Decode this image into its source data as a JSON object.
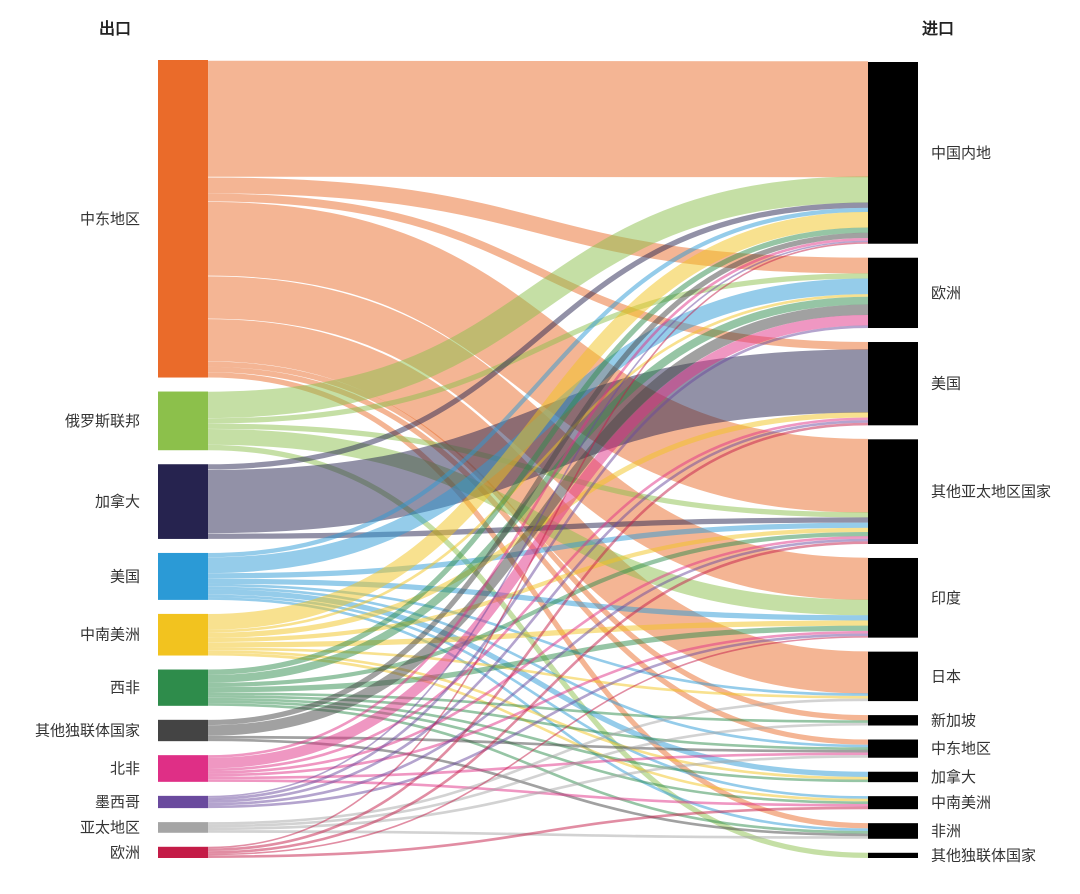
{
  "chart_data": {
    "type": "sankey",
    "source_header": "出口",
    "target_header": "进口",
    "sources": [
      {
        "name": "中东地区",
        "color": "#ea6b2a"
      },
      {
        "name": "俄罗斯联邦",
        "color": "#8cc04b"
      },
      {
        "name": "加拿大",
        "color": "#26234f"
      },
      {
        "name": "美国",
        "color": "#2b9ad6"
      },
      {
        "name": "中南美洲",
        "color": "#f2c31f"
      },
      {
        "name": "西非",
        "color": "#2e8c4b"
      },
      {
        "name": "其他独联体国家",
        "color": "#444444"
      },
      {
        "name": "北非",
        "color": "#df2f86"
      },
      {
        "name": "墨西哥",
        "color": "#6a4a9e"
      },
      {
        "name": "亚太地区",
        "color": "#a5a5a5"
      },
      {
        "name": "欧洲",
        "color": "#c41c47"
      }
    ],
    "targets": [
      {
        "name": "中国内地",
        "color": "#000000"
      },
      {
        "name": "欧洲",
        "color": "#000000"
      },
      {
        "name": "美国",
        "color": "#000000"
      },
      {
        "name": "其他亚太地区国家",
        "color": "#000000"
      },
      {
        "name": "印度",
        "color": "#000000"
      },
      {
        "name": "日本",
        "color": "#000000"
      },
      {
        "name": "新加坡",
        "color": "#000000"
      },
      {
        "name": "中东地区",
        "color": "#000000"
      },
      {
        "name": "加拿大",
        "color": "#000000"
      },
      {
        "name": "中南美洲",
        "color": "#000000"
      },
      {
        "name": "非洲",
        "color": "#000000"
      },
      {
        "name": "其他独联体国家",
        "color": "#000000"
      }
    ],
    "links": [
      {
        "source": "中东地区",
        "target": "中国内地",
        "value": 22
      },
      {
        "source": "中东地区",
        "target": "欧洲",
        "value": 3
      },
      {
        "source": "中东地区",
        "target": "美国",
        "value": 1.5
      },
      {
        "source": "中东地区",
        "target": "其他亚太地区国家",
        "value": 14
      },
      {
        "source": "中东地区",
        "target": "印度",
        "value": 8
      },
      {
        "source": "中东地区",
        "target": "日本",
        "value": 8
      },
      {
        "source": "中东地区",
        "target": "新加坡",
        "value": 1
      },
      {
        "source": "中东地区",
        "target": "中东地区",
        "value": 1
      },
      {
        "source": "中东地区",
        "target": "非洲",
        "value": 1
      },
      {
        "source": "俄罗斯联邦",
        "target": "中国内地",
        "value": 5
      },
      {
        "source": "俄罗斯联邦",
        "target": "欧洲",
        "value": 1
      },
      {
        "source": "俄罗斯联邦",
        "target": "其他亚太地区国家",
        "value": 1
      },
      {
        "source": "俄罗斯联邦",
        "target": "印度",
        "value": 3
      },
      {
        "source": "俄罗斯联邦",
        "target": "其他独联体国家",
        "value": 1
      },
      {
        "source": "加拿大",
        "target": "中国内地",
        "value": 1
      },
      {
        "source": "加拿大",
        "target": "美国",
        "value": 12
      },
      {
        "source": "加拿大",
        "target": "其他亚太地区国家",
        "value": 1
      },
      {
        "source": "美国",
        "target": "中国内地",
        "value": 0.8
      },
      {
        "source": "美国",
        "target": "欧洲",
        "value": 3
      },
      {
        "source": "美国",
        "target": "其他亚太地区国家",
        "value": 1
      },
      {
        "source": "美国",
        "target": "印度",
        "value": 1
      },
      {
        "source": "美国",
        "target": "日本",
        "value": 0.5
      },
      {
        "source": "美国",
        "target": "中东地区",
        "value": 0.5
      },
      {
        "source": "美国",
        "target": "加拿大",
        "value": 1
      },
      {
        "source": "美国",
        "target": "中南美洲",
        "value": 0.5
      },
      {
        "source": "美国",
        "target": "非洲",
        "value": 0.5
      },
      {
        "source": "中南美洲",
        "target": "中国内地",
        "value": 3
      },
      {
        "source": "中南美洲",
        "target": "欧洲",
        "value": 0.5
      },
      {
        "source": "中南美洲",
        "target": "美国",
        "value": 1
      },
      {
        "source": "中南美洲",
        "target": "其他亚太地区国家",
        "value": 0.8
      },
      {
        "source": "中南美洲",
        "target": "印度",
        "value": 1
      },
      {
        "source": "中南美洲",
        "target": "日本",
        "value": 0.5
      },
      {
        "source": "中南美洲",
        "target": "加拿大",
        "value": 0.5
      },
      {
        "source": "中南美洲",
        "target": "中南美洲",
        "value": 0.5
      },
      {
        "source": "西非",
        "target": "中国内地",
        "value": 1
      },
      {
        "source": "西非",
        "target": "欧洲",
        "value": 1.5
      },
      {
        "source": "西非",
        "target": "其他亚太地区国家",
        "value": 0.8
      },
      {
        "source": "西非",
        "target": "印度",
        "value": 1
      },
      {
        "source": "西非",
        "target": "新加坡",
        "value": 0.5
      },
      {
        "source": "西非",
        "target": "中东地区",
        "value": 0.5
      },
      {
        "source": "西非",
        "target": "加拿大",
        "value": 0.5
      },
      {
        "source": "西非",
        "target": "中南美洲",
        "value": 0.5
      },
      {
        "source": "西非",
        "target": "非洲",
        "value": 0.5
      },
      {
        "source": "其他独联体国家",
        "target": "中国内地",
        "value": 1
      },
      {
        "source": "其他独联体国家",
        "target": "欧洲",
        "value": 2
      },
      {
        "source": "其他独联体国家",
        "target": "中东地区",
        "value": 0.5
      },
      {
        "source": "其他独联体国家",
        "target": "非洲",
        "value": 0.5
      },
      {
        "source": "北非",
        "target": "中国内地",
        "value": 0.5
      },
      {
        "source": "北非",
        "target": "欧洲",
        "value": 2
      },
      {
        "source": "北非",
        "target": "美国",
        "value": 0.5
      },
      {
        "source": "北非",
        "target": "其他亚太地区国家",
        "value": 0.5
      },
      {
        "source": "北非",
        "target": "印度",
        "value": 0.5
      },
      {
        "source": "北非",
        "target": "中东地区",
        "value": 0.5
      },
      {
        "source": "北非",
        "target": "中南美洲",
        "value": 0.5
      },
      {
        "source": "墨西哥",
        "target": "中国内地",
        "value": 0.3
      },
      {
        "source": "墨西哥",
        "target": "欧洲",
        "value": 0.5
      },
      {
        "source": "墨西哥",
        "target": "美国",
        "value": 0.5
      },
      {
        "source": "墨西哥",
        "target": "其他亚太地区国家",
        "value": 0.5
      },
      {
        "source": "墨西哥",
        "target": "印度",
        "value": 0.5
      },
      {
        "source": "亚太地区",
        "target": "日本",
        "value": 0.5
      },
      {
        "source": "亚太地区",
        "target": "新加坡",
        "value": 0.5
      },
      {
        "source": "亚太地区",
        "target": "中东地区",
        "value": 0.5
      },
      {
        "source": "亚太地区",
        "target": "非洲",
        "value": 0.5
      },
      {
        "source": "欧洲",
        "target": "中国内地",
        "value": 0.3
      },
      {
        "source": "欧洲",
        "target": "美国",
        "value": 0.5
      },
      {
        "source": "欧洲",
        "target": "其他亚太地区国家",
        "value": 0.5
      },
      {
        "source": "欧洲",
        "target": "印度",
        "value": 0.3
      },
      {
        "source": "欧洲",
        "target": "中南美洲",
        "value": 0.5
      }
    ]
  }
}
